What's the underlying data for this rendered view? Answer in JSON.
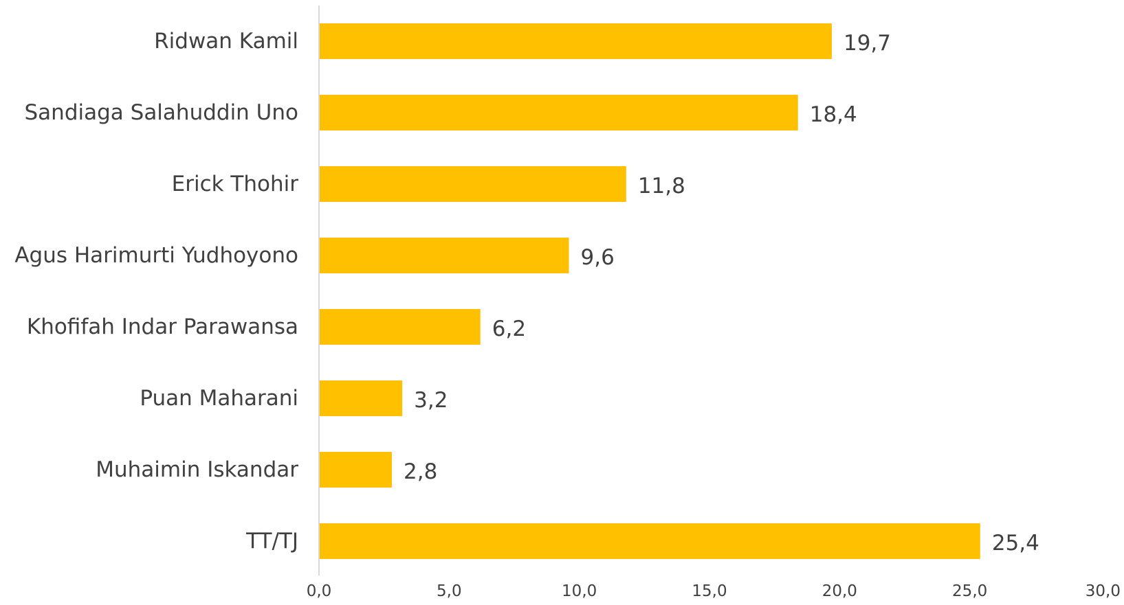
{
  "chart_data": {
    "type": "bar",
    "orientation": "horizontal",
    "categories": [
      "Ridwan Kamil",
      "Sandiaga Salahuddin Uno",
      "Erick Thohir",
      "Agus Harimurti Yudhoyono",
      "Khofifah Indar Parawansa",
      "Puan Maharani",
      "Muhaimin Iskandar",
      "TT/TJ"
    ],
    "values": [
      19.7,
      18.4,
      11.8,
      9.6,
      6.2,
      3.2,
      2.8,
      25.4
    ],
    "value_labels": [
      "19,7",
      "18,4",
      "11,8",
      "9,6",
      "6,2",
      "3,2",
      "2,8",
      "25,4"
    ],
    "xlim": [
      0,
      30
    ],
    "xticks": [
      0,
      5,
      10,
      15,
      20,
      25,
      30
    ],
    "xtick_labels": [
      "0,0",
      "5,0",
      "10,0",
      "15,0",
      "20,0",
      "25,0",
      "30,0"
    ],
    "title": "",
    "xlabel": "",
    "ylabel": "",
    "grid": false,
    "legend": "none",
    "colors": {
      "bar": "#FFC000",
      "axis": "#D9D9D9",
      "text": "#404040"
    }
  }
}
